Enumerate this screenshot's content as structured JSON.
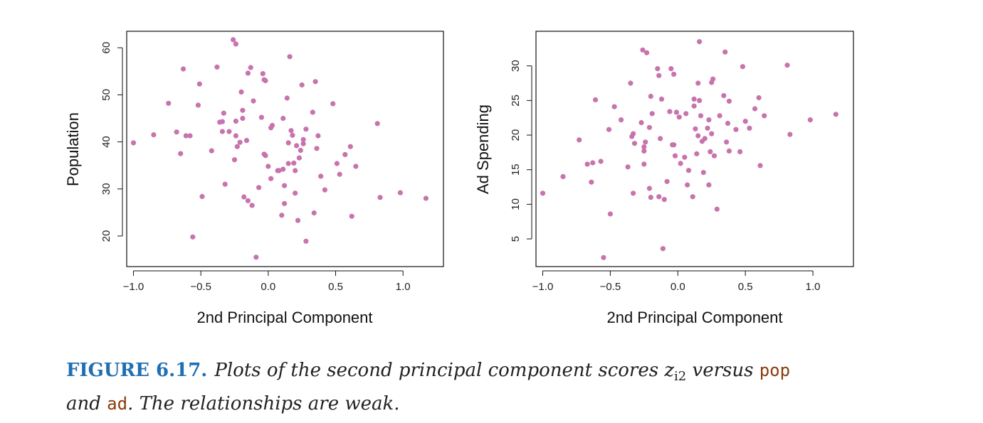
{
  "chart_data": [
    {
      "type": "scatter",
      "xlabel": "2nd Principal Component",
      "ylabel": "Population",
      "xlim": [
        -1.05,
        1.3
      ],
      "ylim": [
        13.5,
        63.5
      ],
      "xticks": [
        -1.0,
        -0.5,
        0.0,
        0.5,
        1.0
      ],
      "xtick_labels": [
        "−1.0",
        "−0.5",
        "0.0",
        "0.5",
        "1.0"
      ],
      "yticks": [
        20,
        30,
        40,
        50,
        60
      ],
      "ytick_labels": [
        "20",
        "30",
        "40",
        "50",
        "60"
      ],
      "grid": false,
      "point_color": "#c873ad",
      "x": [
        -1.0,
        -0.85,
        -0.74,
        -0.68,
        -0.65,
        -0.63,
        -0.61,
        -0.58,
        -0.56,
        -0.52,
        -0.51,
        -0.49,
        -0.42,
        -0.38,
        -0.36,
        -0.34,
        -0.34,
        -0.33,
        -0.32,
        -0.29,
        -0.26,
        -0.25,
        -0.24,
        -0.24,
        -0.24,
        -0.23,
        -0.21,
        -0.2,
        -0.19,
        -0.19,
        -0.18,
        -0.16,
        -0.15,
        -0.15,
        -0.13,
        -0.12,
        -0.11,
        -0.09,
        -0.07,
        -0.05,
        -0.04,
        -0.03,
        -0.03,
        -0.02,
        -0.02,
        0.0,
        0.02,
        0.02,
        0.03,
        0.07,
        0.08,
        0.1,
        0.11,
        0.11,
        0.12,
        0.12,
        0.14,
        0.15,
        0.15,
        0.16,
        0.17,
        0.18,
        0.19,
        0.2,
        0.2,
        0.21,
        0.22,
        0.23,
        0.24,
        0.25,
        0.26,
        0.26,
        0.28,
        0.28,
        0.33,
        0.34,
        0.35,
        0.36,
        0.37,
        0.39,
        0.42,
        0.48,
        0.51,
        0.53,
        0.57,
        0.61,
        0.62,
        0.65,
        0.81,
        0.83,
        0.98,
        1.17
      ],
      "y": [
        39.8,
        41.5,
        48.2,
        42.1,
        37.5,
        55.5,
        41.3,
        41.3,
        19.8,
        47.8,
        52.3,
        28.4,
        38.1,
        55.9,
        44.2,
        44.3,
        42.2,
        46.1,
        31.0,
        42.2,
        61.7,
        36.2,
        44.4,
        60.8,
        41.3,
        39.0,
        39.9,
        50.6,
        45.0,
        46.7,
        28.3,
        40.3,
        27.5,
        54.6,
        55.8,
        26.5,
        48.7,
        15.5,
        30.3,
        45.2,
        54.5,
        37.4,
        53.2,
        53.0,
        37.1,
        34.8,
        43.0,
        32.2,
        43.5,
        33.9,
        33.9,
        24.4,
        34.2,
        45.0,
        30.7,
        26.9,
        49.3,
        39.8,
        35.4,
        58.1,
        42.4,
        41.4,
        35.5,
        33.9,
        29.1,
        39.2,
        23.3,
        36.6,
        38.2,
        52.1,
        40.5,
        39.6,
        42.7,
        18.9,
        46.3,
        24.9,
        52.8,
        38.6,
        41.3,
        32.7,
        29.8,
        48.1,
        35.4,
        33.1,
        37.3,
        39.0,
        24.2,
        34.8,
        43.9,
        28.2,
        29.2,
        28.0
      ]
    },
    {
      "type": "scatter",
      "xlabel": "2nd Principal Component",
      "ylabel": "Ad Spending",
      "xlim": [
        -1.05,
        1.3
      ],
      "ylim": [
        1.0,
        35.0
      ],
      "xticks": [
        -1.0,
        -0.5,
        0.0,
        0.5,
        1.0
      ],
      "xtick_labels": [
        "−1.0",
        "−0.5",
        "0.0",
        "0.5",
        "1.0"
      ],
      "yticks": [
        5,
        10,
        15,
        20,
        25,
        30
      ],
      "ytick_labels": [
        "5",
        "10",
        "15",
        "20",
        "25",
        "30"
      ],
      "grid": false,
      "point_color": "#c873ad",
      "x": [
        -1.0,
        -0.85,
        -0.73,
        -0.67,
        -0.64,
        -0.63,
        -0.61,
        -0.57,
        -0.55,
        -0.51,
        -0.5,
        -0.47,
        -0.42,
        -0.37,
        -0.35,
        -0.34,
        -0.33,
        -0.33,
        -0.32,
        -0.27,
        -0.26,
        -0.25,
        -0.25,
        -0.25,
        -0.24,
        -0.23,
        -0.21,
        -0.21,
        -0.2,
        -0.2,
        -0.19,
        -0.15,
        -0.14,
        -0.14,
        -0.13,
        -0.12,
        -0.11,
        -0.1,
        -0.08,
        -0.06,
        -0.05,
        -0.04,
        -0.03,
        -0.03,
        -0.02,
        -0.01,
        0.01,
        0.02,
        0.05,
        0.06,
        0.07,
        0.08,
        0.11,
        0.12,
        0.12,
        0.13,
        0.14,
        0.15,
        0.15,
        0.16,
        0.16,
        0.17,
        0.18,
        0.19,
        0.2,
        0.22,
        0.23,
        0.23,
        0.24,
        0.25,
        0.25,
        0.26,
        0.27,
        0.29,
        0.31,
        0.34,
        0.35,
        0.36,
        0.37,
        0.38,
        0.38,
        0.43,
        0.46,
        0.48,
        0.5,
        0.53,
        0.57,
        0.6,
        0.61,
        0.64,
        0.81,
        0.83,
        0.98,
        1.17
      ],
      "y": [
        11.6,
        14.0,
        19.3,
        15.8,
        13.2,
        16.0,
        25.1,
        16.2,
        2.3,
        20.8,
        8.6,
        24.1,
        22.2,
        15.4,
        27.5,
        19.8,
        20.2,
        11.6,
        18.8,
        21.8,
        32.3,
        15.8,
        17.7,
        18.3,
        19.0,
        31.9,
        21.1,
        12.3,
        25.6,
        11.0,
        23.1,
        29.6,
        28.6,
        11.1,
        19.5,
        25.2,
        3.6,
        10.7,
        13.3,
        23.4,
        29.6,
        18.6,
        28.8,
        18.6,
        17.0,
        23.3,
        22.6,
        15.9,
        16.8,
        23.1,
        12.8,
        14.9,
        11.1,
        24.2,
        25.2,
        20.9,
        17.3,
        27.5,
        19.9,
        33.5,
        25.0,
        22.8,
        19.1,
        14.6,
        19.5,
        21.0,
        22.2,
        12.8,
        17.6,
        20.2,
        27.6,
        28.1,
        17.0,
        9.3,
        22.8,
        25.7,
        32.0,
        19.0,
        21.7,
        24.9,
        17.7,
        20.8,
        17.6,
        29.9,
        22.0,
        21.0,
        23.8,
        25.4,
        15.6,
        22.8,
        30.1,
        20.1,
        22.2,
        23.0
      ]
    }
  ],
  "caption": {
    "label": "FIGURE 6.17.",
    "text_1": "Plots of the second principal component scores ",
    "math_var": "z",
    "math_sub": "i2",
    "text_2": " versus ",
    "code_1": "pop",
    "text_3": "and ",
    "code_2": "ad",
    "text_4": ". The relationships are weak."
  }
}
